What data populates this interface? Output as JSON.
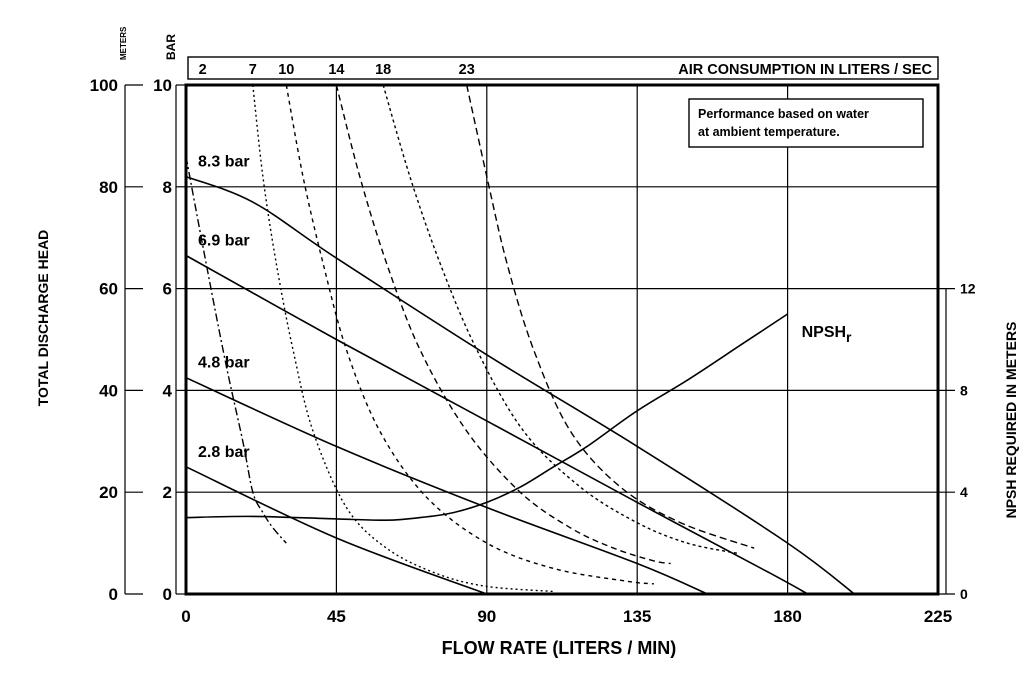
{
  "chart_data": {
    "type": "line",
    "title": "",
    "xlabel": "FLOW RATE (LITERS / MIN)",
    "ylabel": "TOTAL DISCHARGE HEAD",
    "y2label": "NPSH REQUIRED IN METERS",
    "xlim": [
      0,
      225
    ],
    "ylim_meters": [
      0,
      100
    ],
    "ylim_bar": [
      0,
      10
    ],
    "y2lim": [
      0,
      20
    ],
    "grid": true,
    "x_ticks": [
      "0",
      "45",
      "90",
      "135",
      "180",
      "225"
    ],
    "y_ticks_meters": [
      "0",
      "20",
      "40",
      "60",
      "80",
      "100"
    ],
    "y_ticks_bar": [
      "0",
      "2",
      "4",
      "6",
      "8",
      "10"
    ],
    "y2_ticks": [
      "0",
      "4",
      "8",
      "12"
    ],
    "units_meters": "METERS",
    "units_bar": "BAR",
    "note_lines": [
      "Performance based on water",
      "at ambient temperature."
    ],
    "air_title": "AIR CONSUMPTION IN LITERS / SEC",
    "air_consumption": [
      {
        "label": "2",
        "x_top": 5
      },
      {
        "label": "7",
        "x_top": 20
      },
      {
        "label": "10",
        "x_top": 30
      },
      {
        "label": "14",
        "x_top": 45
      },
      {
        "label": "18",
        "x_top": 59
      },
      {
        "label": "23",
        "x_top": 84
      }
    ],
    "pressure_curves": [
      {
        "name": "8.3 bar",
        "points": [
          [
            0,
            82
          ],
          [
            20,
            77
          ],
          [
            45,
            66
          ],
          [
            90,
            47
          ],
          [
            135,
            29
          ],
          [
            180,
            10
          ],
          [
            200,
            0
          ]
        ]
      },
      {
        "name": "6.9 bar",
        "points": [
          [
            0,
            66.5
          ],
          [
            45,
            50
          ],
          [
            90,
            34
          ],
          [
            135,
            18
          ],
          [
            175,
            4
          ],
          [
            186,
            0
          ]
        ]
      },
      {
        "name": "4.8 bar",
        "points": [
          [
            0,
            42.5
          ],
          [
            45,
            29
          ],
          [
            90,
            17
          ],
          [
            135,
            6
          ],
          [
            156,
            0
          ]
        ]
      },
      {
        "name": "2.8 bar",
        "points": [
          [
            0,
            25
          ],
          [
            45,
            11
          ],
          [
            90,
            0
          ]
        ]
      }
    ],
    "air_curves": [
      {
        "name": "2 L/s",
        "points": [
          [
            0,
            86
          ],
          [
            6,
            65
          ],
          [
            12,
            45
          ],
          [
            17,
            30
          ],
          [
            20,
            20
          ],
          [
            23,
            16
          ],
          [
            26,
            13
          ],
          [
            30,
            10
          ]
        ]
      },
      {
        "name": "7 L/s",
        "points": [
          [
            20,
            100
          ],
          [
            23,
            82
          ],
          [
            27,
            65
          ],
          [
            32,
            48
          ],
          [
            38,
            32
          ],
          [
            48,
            17
          ],
          [
            60,
            9
          ],
          [
            75,
            4
          ],
          [
            90,
            1.5
          ],
          [
            110,
            0.5
          ]
        ]
      },
      {
        "name": "10 L/s",
        "points": [
          [
            30,
            100
          ],
          [
            35,
            82
          ],
          [
            41,
            65
          ],
          [
            48,
            48
          ],
          [
            58,
            32
          ],
          [
            72,
            19
          ],
          [
            90,
            10
          ],
          [
            110,
            5
          ],
          [
            132,
            2.5
          ],
          [
            140,
            2
          ]
        ]
      },
      {
        "name": "14 L/s",
        "points": [
          [
            45,
            100
          ],
          [
            52,
            82
          ],
          [
            60,
            65
          ],
          [
            70,
            48
          ],
          [
            84,
            32
          ],
          [
            100,
            20
          ],
          [
            115,
            13
          ],
          [
            128,
            9
          ],
          [
            140,
            6.5
          ],
          [
            145,
            6
          ]
        ]
      },
      {
        "name": "18 L/s",
        "points": [
          [
            59,
            100
          ],
          [
            67,
            82
          ],
          [
            76,
            65
          ],
          [
            87,
            48
          ],
          [
            101,
            32
          ],
          [
            118,
            21
          ],
          [
            135,
            14
          ],
          [
            150,
            10
          ],
          [
            165,
            8
          ]
        ]
      },
      {
        "name": "23 L/s",
        "points": [
          [
            84,
            100
          ],
          [
            90,
            82
          ],
          [
            96,
            65
          ],
          [
            104,
            48
          ],
          [
            115,
            32
          ],
          [
            130,
            21
          ],
          [
            148,
            14
          ],
          [
            170,
            9
          ]
        ]
      }
    ],
    "npsh_curve": {
      "name": "NPSH",
      "subscript": "r",
      "points": [
        [
          0,
          3.0
        ],
        [
          20,
          3.05
        ],
        [
          45,
          2.95
        ],
        [
          60,
          2.9
        ],
        [
          70,
          3.0
        ],
        [
          80,
          3.2
        ],
        [
          90,
          3.6
        ],
        [
          100,
          4.2
        ],
        [
          110,
          5.0
        ],
        [
          120,
          5.8
        ],
        [
          135,
          7.2
        ],
        [
          150,
          8.4
        ],
        [
          165,
          9.7
        ],
        [
          180,
          11.0
        ]
      ]
    }
  }
}
